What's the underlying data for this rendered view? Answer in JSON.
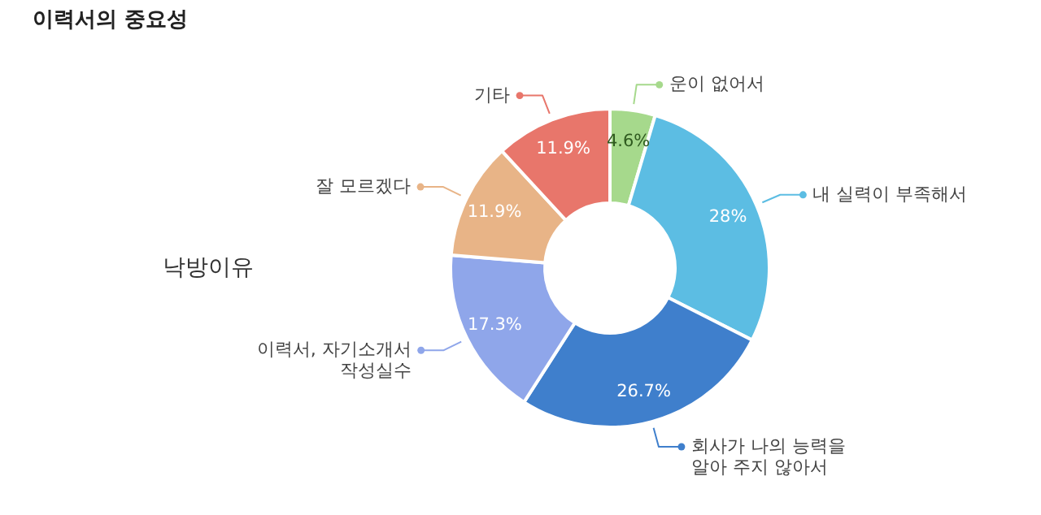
{
  "chart_data": {
    "type": "donut",
    "title": "이력서의 중요성",
    "categories": [
      "운이 없어서",
      "내 실력이 부족해서",
      "회사가 나의 능력을\n알아 주지 않아서",
      "이력서, 자기소개서\n작성실수",
      "잘 모르겠다",
      "기타"
    ],
    "values": [
      4.6,
      28,
      26.7,
      17.3,
      11.9,
      11.9
    ],
    "value_labels": [
      "4.6%",
      "28%",
      "26.7%",
      "17.3%",
      "11.9%",
      "11.9%"
    ],
    "colors": [
      "#a6d98c",
      "#5cbde3",
      "#3f7fcc",
      "#8fa6ea",
      "#e8b487",
      "#e8766b"
    ],
    "annotations": [
      "낙방이유"
    ],
    "legend": "right"
  }
}
